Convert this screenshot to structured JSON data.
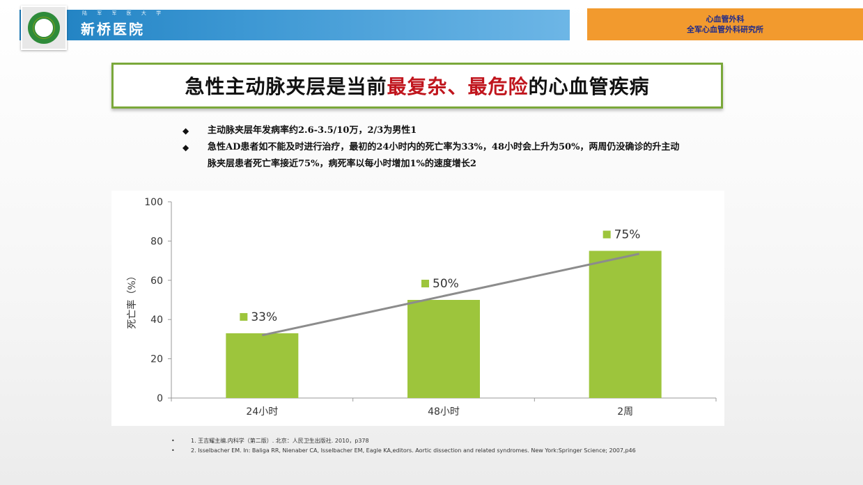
{
  "header": {
    "brand_small": "陆 军 军 医 大 学",
    "brand_name": "新桥医院",
    "dept_line1": "心血管外科",
    "dept_line2": "全军心血管外科研究所"
  },
  "title": {
    "part1": "急性主动脉夹层是当前",
    "part2_red": "最复杂、最危险",
    "part3": "的心血管疾病"
  },
  "bullets": [
    {
      "marker": "◆",
      "text": "主动脉夹层年发病率约2.6-3.5/10万，2/3为男性1"
    },
    {
      "marker": "◆",
      "text": "急性AD患者如不能及时进行治疗，最初的24小时内的死亡率为33%，48小时会上升为50%，两周仍没确诊的升主动脉夹层患者死亡率接近75%，病死率以每小时增加1%的速度增长2"
    }
  ],
  "chart_data": {
    "type": "bar",
    "categories": [
      "24小时",
      "48小时",
      "2周"
    ],
    "values": [
      33,
      50,
      75
    ],
    "data_labels": [
      "33%",
      "50%",
      "75%"
    ],
    "ylabel": "死亡率（%）",
    "yticks": [
      "0",
      "20",
      "40",
      "60",
      "80",
      "100"
    ],
    "ylim": [
      0,
      100
    ],
    "trendline": true,
    "bar_color": "#9dc53c",
    "trend_color": "#8c8c8c",
    "grid": false
  },
  "references": [
    {
      "marker": "•",
      "text": "1. 王吉耀主编.内科学（第二版）. 北京：人民卫生出版社. 2010，p378"
    },
    {
      "marker": "•",
      "text": "2. Isselbacher EM. In: Baliga RR, Nienaber CA, Isselbacher EM, Eagle KA,editors. Aortic dissection and related syndromes. New York:Springer Science; 2007,p46"
    }
  ]
}
